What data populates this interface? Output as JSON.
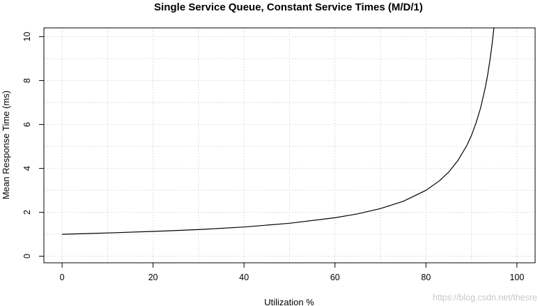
{
  "chart_data": {
    "type": "line",
    "title": "Single Service Queue, Constant Service Times (M/D/1)",
    "xlabel": "Utilization %",
    "ylabel": "Mean Response Time (ms)",
    "xlim": [
      -4,
      104
    ],
    "ylim": [
      -0.3,
      10.4
    ],
    "x_ticks": [
      0,
      20,
      40,
      60,
      80,
      100
    ],
    "y_ticks": [
      0,
      2,
      4,
      6,
      8,
      10
    ],
    "grid": true,
    "series": [
      {
        "color": "#000000",
        "x": [
          0,
          10,
          20,
          30,
          40,
          50,
          60,
          65,
          70,
          75,
          80,
          83,
          85,
          87,
          89,
          90,
          91,
          92,
          93,
          93.5,
          94,
          94.5,
          95
        ],
        "y": [
          1.0,
          1.06,
          1.13,
          1.21,
          1.33,
          1.5,
          1.75,
          1.93,
          2.17,
          2.5,
          3.0,
          3.44,
          3.83,
          4.35,
          5.05,
          5.5,
          6.06,
          6.75,
          7.64,
          8.18,
          8.83,
          9.59,
          10.5
        ]
      }
    ]
  },
  "watermark": "https://blog.csdn.net/thesre"
}
